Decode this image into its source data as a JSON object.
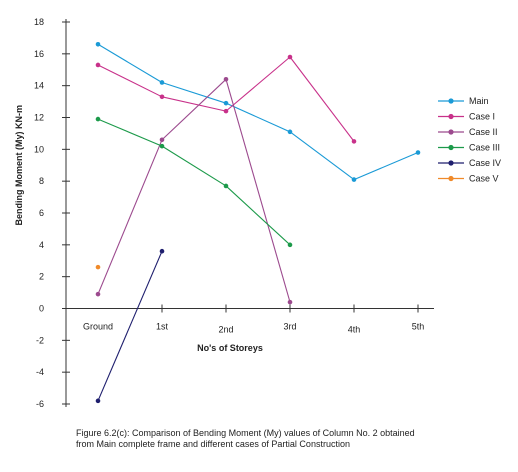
{
  "chart_data": {
    "type": "line",
    "title": "",
    "xlabel": "No's of Storeys",
    "ylabel": "Bending Moment (My) KN-m",
    "categories": [
      "Ground",
      "1st",
      "2nd",
      "3rd",
      "4th",
      "5th"
    ],
    "ylim": [
      -6,
      18
    ],
    "yticks": [
      -6,
      -4,
      -2,
      0,
      2,
      4,
      6,
      8,
      10,
      12,
      14,
      16,
      18
    ],
    "grid": false,
    "legend_position": "right",
    "series": [
      {
        "name": "Main",
        "color": "#1a9ad6",
        "values": [
          16.6,
          14.2,
          12.9,
          11.1,
          8.1,
          9.8
        ]
      },
      {
        "name": "Case I",
        "color": "#c8318a",
        "values": [
          15.3,
          13.3,
          12.4,
          15.8,
          10.5,
          null
        ]
      },
      {
        "name": "Case II",
        "color": "#9c4a8e",
        "values": [
          0.9,
          10.6,
          14.4,
          0.4,
          null,
          null
        ]
      },
      {
        "name": "Case III",
        "color": "#1c9a4a",
        "values": [
          11.9,
          10.2,
          7.7,
          4.0,
          null,
          null
        ]
      },
      {
        "name": "Case IV",
        "color": "#1f1f6e",
        "values": [
          -5.8,
          3.6,
          null,
          null,
          null,
          null
        ]
      },
      {
        "name": "Case V",
        "color": "#f08a2a",
        "values": [
          2.6,
          null,
          null,
          null,
          null,
          null
        ]
      }
    ]
  },
  "caption": {
    "line1": "Figure 6.2(c): Comparison of Bending Moment (My) values of Column No. 2 obtained",
    "line2": "from Main complete frame and different cases of Partial Construction"
  }
}
